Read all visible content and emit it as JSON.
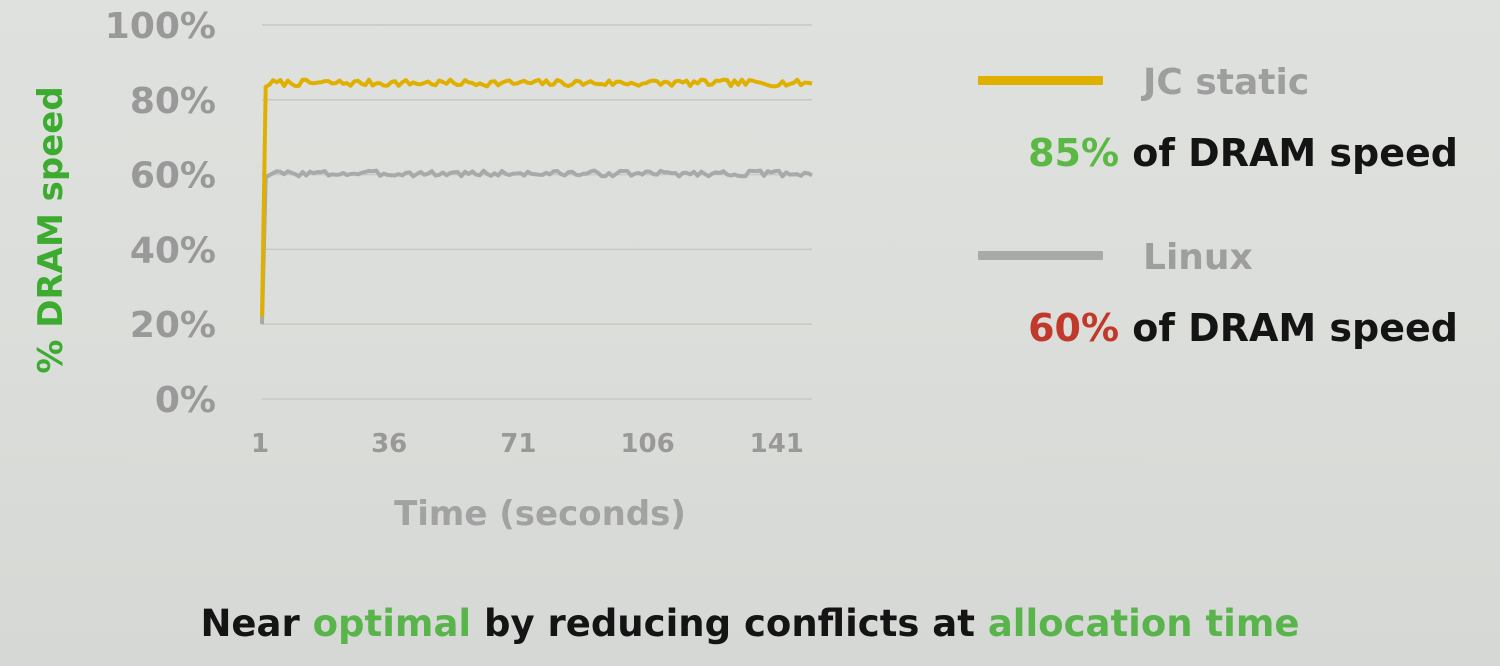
{
  "chart_data": {
    "type": "line",
    "xlabel": "Time (seconds)",
    "ylabel": "% DRAM speed",
    "ylim": [
      0,
      100
    ],
    "xlim": [
      1,
      150
    ],
    "yticks": [
      "0%",
      "20%",
      "40%",
      "60%",
      "80%",
      "100%"
    ],
    "ytick_values": [
      0,
      20,
      40,
      60,
      80,
      100
    ],
    "xticks": [
      "1",
      "36",
      "71",
      "106",
      "141"
    ],
    "xtick_values": [
      1,
      36,
      71,
      106,
      141
    ],
    "grid": true,
    "legend_position": "right",
    "series": [
      {
        "name": "JC static",
        "color": "#e0b000",
        "start": 22,
        "level": 84.5,
        "noise": 0.9,
        "seed": 7
      },
      {
        "name": "Linux",
        "color": "#a9a9a9",
        "start": 20,
        "level": 60.3,
        "noise": 0.8,
        "seed": 3
      }
    ]
  },
  "legend": {
    "items": [
      {
        "name": "JC static",
        "color": "#e0b000",
        "percent": "85%",
        "percent_color": "#5cb845",
        "suffix": " of DRAM speed"
      },
      {
        "name": "Linux",
        "color": "#a9a9a9",
        "percent": "60%",
        "percent_color": "#c0392b",
        "suffix": " of DRAM speed"
      }
    ]
  },
  "caption": {
    "part1": "Near ",
    "highlight1": "optimal",
    "part2": " by reducing conflicts at ",
    "highlight2": "allocation time"
  }
}
